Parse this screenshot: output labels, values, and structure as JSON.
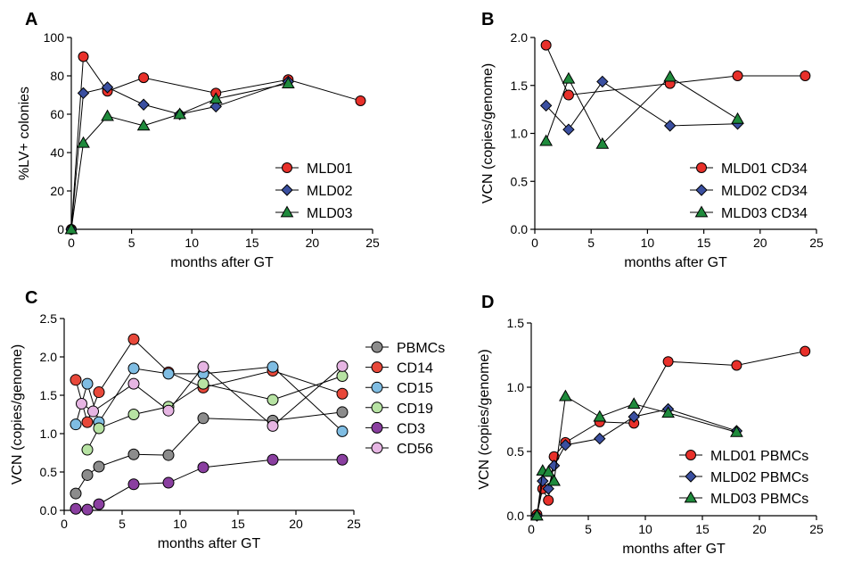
{
  "chart_data": [
    {
      "panel": "A",
      "type": "line",
      "xlabel": "months after GT",
      "ylabel": "%LV+ colonies",
      "xlim": [
        0,
        25
      ],
      "ylim": [
        0,
        100
      ],
      "xticks": [
        0,
        5,
        10,
        15,
        20,
        25
      ],
      "yticks": [
        0,
        20,
        40,
        60,
        80,
        100
      ],
      "legend": "bottom-right",
      "series": [
        {
          "name": "MLD01",
          "marker": "circle",
          "color": "#e8302a",
          "x": [
            0,
            1,
            3,
            6,
            12,
            18,
            24
          ],
          "y": [
            0,
            90,
            72,
            79,
            71,
            78,
            67
          ]
        },
        {
          "name": "MLD02",
          "marker": "diamond",
          "color": "#3a4fa0",
          "x": [
            0,
            1,
            3,
            6,
            9,
            12,
            18
          ],
          "y": [
            0,
            71,
            74,
            65,
            60,
            64,
            77
          ]
        },
        {
          "name": "MLD03",
          "marker": "triangle",
          "color": "#1f8a3c",
          "x": [
            0,
            1,
            3,
            6,
            9,
            12,
            18
          ],
          "y": [
            0,
            45,
            59,
            54,
            60,
            68,
            76
          ]
        }
      ]
    },
    {
      "panel": "B",
      "type": "line",
      "xlabel": "months after GT",
      "ylabel": "VCN  (copies/genome)",
      "xlim": [
        0,
        25
      ],
      "ylim": [
        0,
        2.0
      ],
      "xticks": [
        0,
        5,
        10,
        15,
        20,
        25
      ],
      "yticks": [
        "0.0",
        "0.5",
        "1.0",
        "1.5",
        "2.0"
      ],
      "legend": "bottom-right",
      "series": [
        {
          "name": "MLD01 CD34",
          "marker": "circle",
          "color": "#e8302a",
          "x": [
            1,
            3,
            12,
            18,
            24
          ],
          "y": [
            1.92,
            1.4,
            1.52,
            1.6,
            1.6
          ]
        },
        {
          "name": "MLD02 CD34",
          "marker": "diamond",
          "color": "#3a4fa0",
          "x": [
            1,
            3,
            6,
            12,
            18
          ],
          "y": [
            1.29,
            1.04,
            1.54,
            1.08,
            1.1
          ]
        },
        {
          "name": "MLD03 CD34",
          "marker": "triangle",
          "color": "#1f8a3c",
          "x": [
            1,
            3,
            6,
            12,
            18
          ],
          "y": [
            0.92,
            1.57,
            0.89,
            1.59,
            1.15
          ]
        }
      ]
    },
    {
      "panel": "C",
      "type": "line",
      "xlabel": "months after GT",
      "ylabel": "VCN  (copies/genome)",
      "xlim": [
        0,
        25
      ],
      "ylim": [
        0,
        2.5
      ],
      "xticks": [
        0,
        5,
        10,
        15,
        20,
        25
      ],
      "yticks": [
        "0.0",
        "0.5",
        "1.0",
        "1.5",
        "2.0",
        "2.5"
      ],
      "legend": "right",
      "series": [
        {
          "name": "PBMCs",
          "marker": "circle",
          "color": "#8c8c8c",
          "x": [
            1,
            2,
            3,
            6,
            9,
            12,
            18,
            24
          ],
          "y": [
            0.22,
            0.46,
            0.57,
            0.73,
            0.72,
            1.2,
            1.17,
            1.28
          ]
        },
        {
          "name": "CD14",
          "marker": "circle",
          "color": "#e8483a",
          "x": [
            1,
            2,
            3,
            6,
            9,
            12,
            18,
            24
          ],
          "y": [
            1.7,
            1.15,
            1.54,
            2.23,
            1.8,
            1.6,
            1.82,
            1.52
          ]
        },
        {
          "name": "CD15",
          "marker": "circle",
          "color": "#7fbde3",
          "x": [
            1,
            2,
            3,
            6,
            9,
            12,
            18,
            24
          ],
          "y": [
            1.12,
            1.65,
            1.15,
            1.85,
            1.78,
            1.78,
            1.87,
            1.03
          ]
        },
        {
          "name": "CD19",
          "marker": "circle",
          "color": "#b7e3a3",
          "x": [
            2,
            3,
            6,
            9,
            12,
            18,
            24
          ],
          "y": [
            0.79,
            1.07,
            1.25,
            1.35,
            1.65,
            1.44,
            1.75
          ]
        },
        {
          "name": "CD3",
          "marker": "circle",
          "color": "#8a3fa0",
          "x": [
            1,
            2,
            3,
            6,
            9,
            12,
            18,
            24
          ],
          "y": [
            0.02,
            0.01,
            0.08,
            0.34,
            0.36,
            0.56,
            0.66,
            0.66
          ]
        },
        {
          "name": "CD56",
          "marker": "circle",
          "color": "#e6b5e3",
          "x": [
            1.5,
            2.5,
            6,
            9,
            12,
            18,
            24
          ],
          "y": [
            1.39,
            1.29,
            1.65,
            1.3,
            1.87,
            1.1,
            1.88
          ]
        }
      ]
    },
    {
      "panel": "D",
      "type": "line",
      "xlabel": "months after GT",
      "ylabel": "VCN  (copies/genome)",
      "xlim": [
        0,
        25
      ],
      "ylim": [
        0,
        1.5
      ],
      "xticks": [
        0,
        5,
        10,
        15,
        20,
        25
      ],
      "yticks": [
        "0.0",
        "0.5",
        "1.0",
        "1.5"
      ],
      "legend": "bottom-right",
      "series": [
        {
          "name": "MLD01 PBMCs",
          "marker": "circle",
          "color": "#e8302a",
          "x": [
            0.5,
            1,
            1.5,
            2,
            3,
            6,
            9,
            12,
            18,
            24
          ],
          "y": [
            0.01,
            0.21,
            0.12,
            0.46,
            0.57,
            0.73,
            0.72,
            1.2,
            1.17,
            1.28
          ]
        },
        {
          "name": "MLD02 PBMCs",
          "marker": "diamond",
          "color": "#3a4fa0",
          "x": [
            0.5,
            1,
            1.5,
            2,
            3,
            6,
            9,
            12,
            18
          ],
          "y": [
            0.0,
            0.27,
            0.21,
            0.39,
            0.55,
            0.6,
            0.77,
            0.83,
            0.66
          ]
        },
        {
          "name": "MLD03 PBMCs",
          "marker": "triangle",
          "color": "#1f8a3c",
          "x": [
            0.5,
            1,
            1.5,
            2,
            3,
            6,
            9,
            12,
            18
          ],
          "y": [
            0.0,
            0.35,
            0.34,
            0.27,
            0.93,
            0.77,
            0.87,
            0.8,
            0.65
          ]
        }
      ]
    }
  ]
}
